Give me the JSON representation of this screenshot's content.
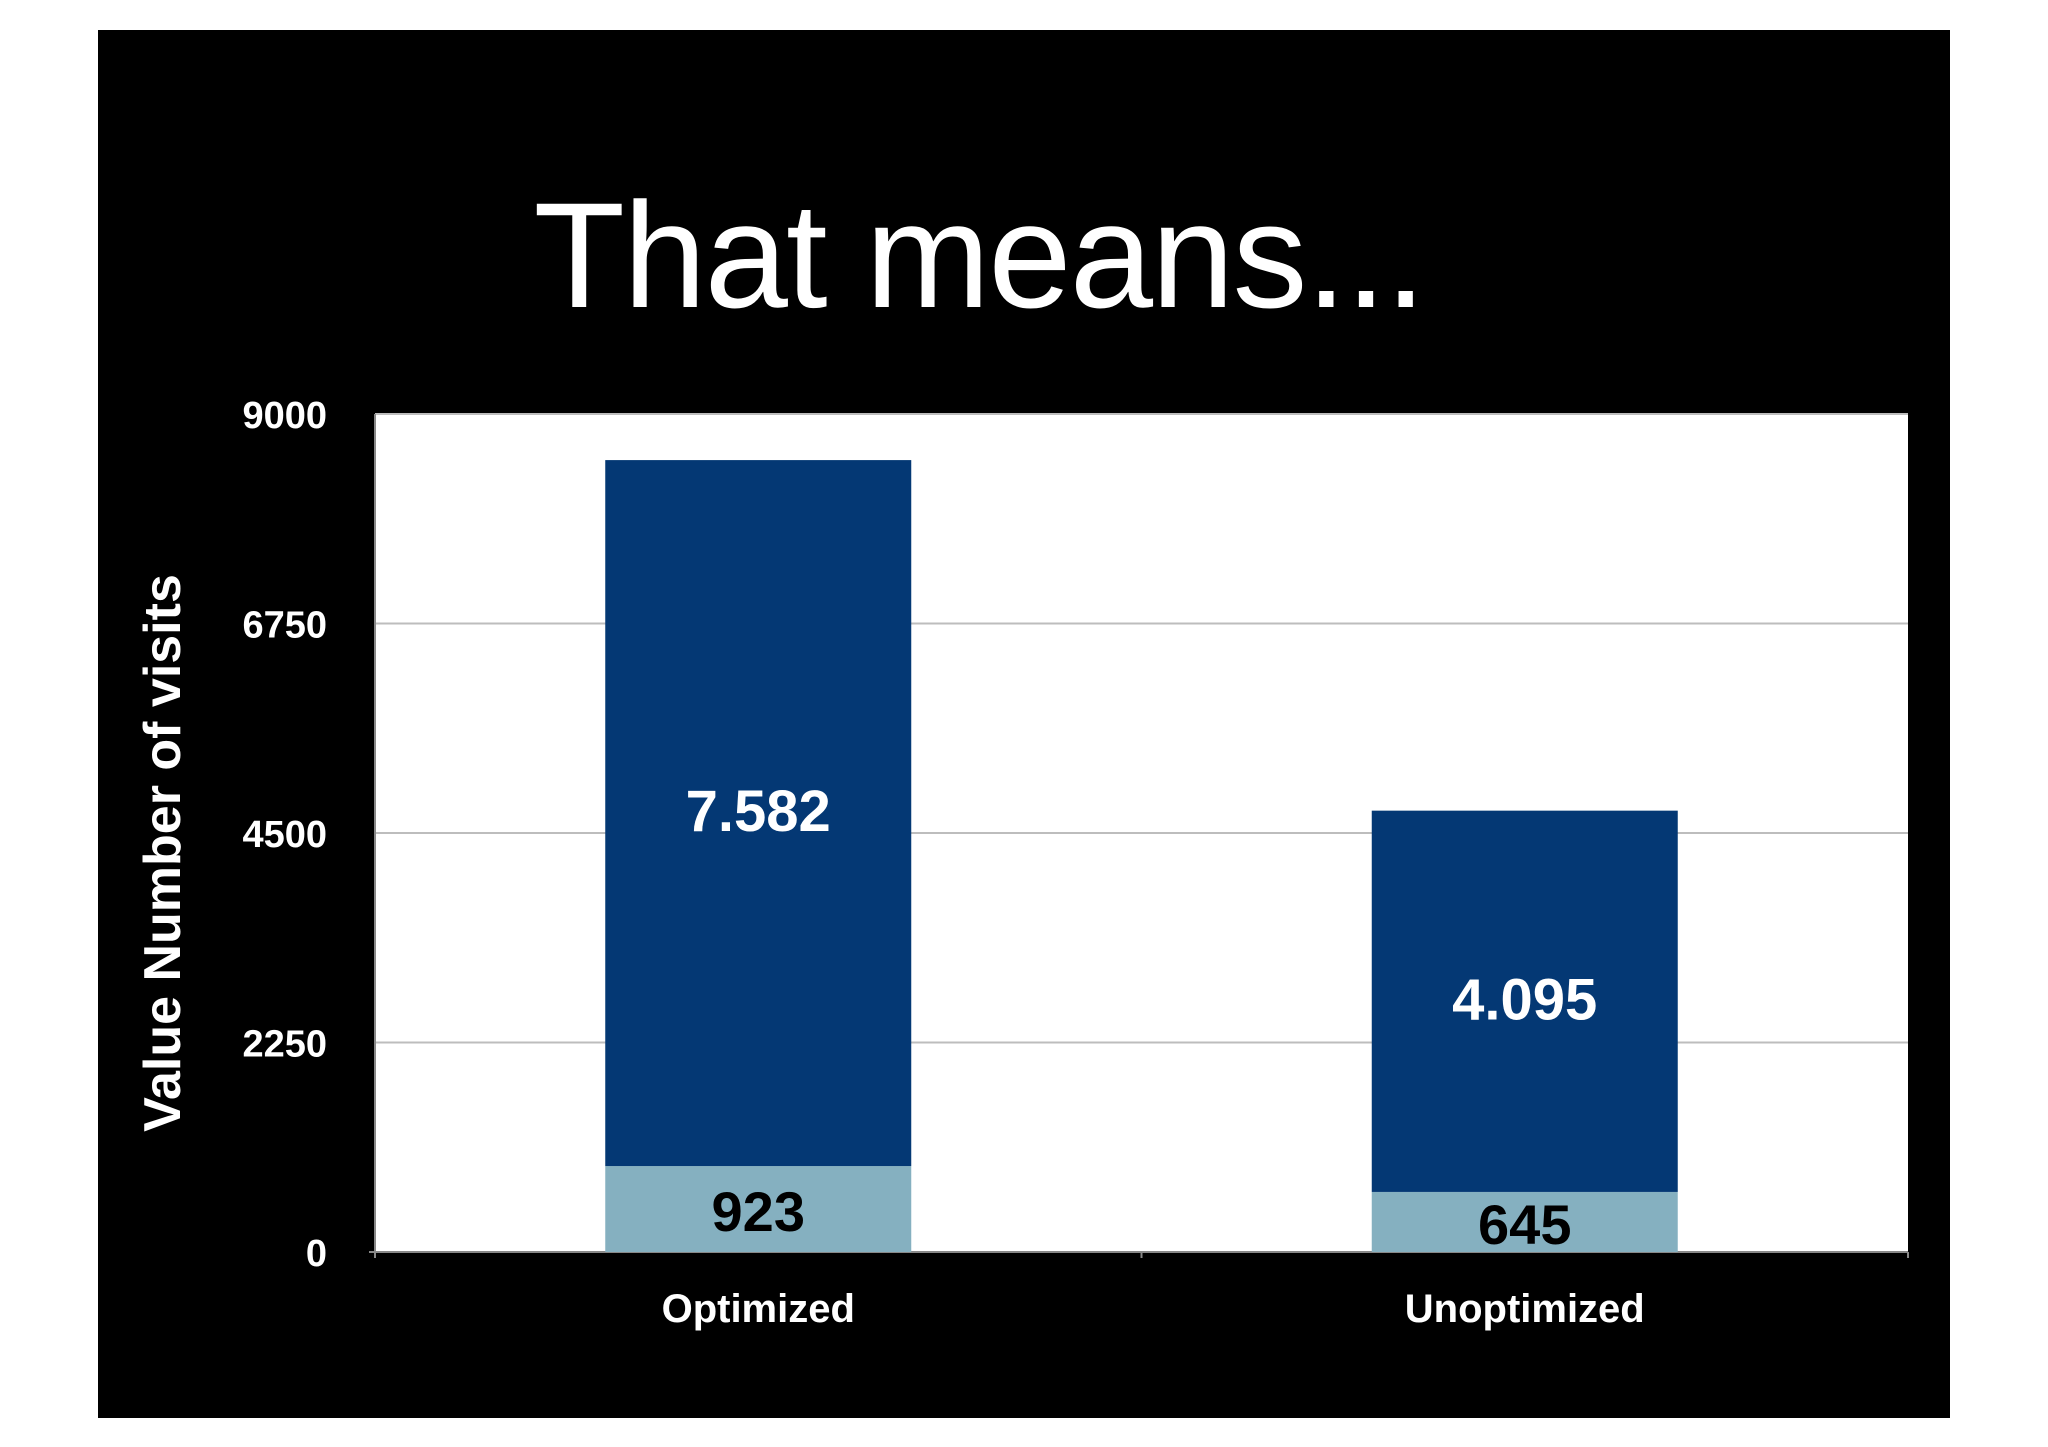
{
  "slide": {
    "title": "That means..."
  },
  "colors": {
    "background": "#000000",
    "plot_area": "#ffffff",
    "series_top": "#043874",
    "series_bottom": "#85b0c0",
    "gridline": "#bdbdbd",
    "text": "#ffffff",
    "bottom_label_text": "#000000"
  },
  "chart_data": {
    "type": "bar",
    "stacked": true,
    "title": "That means...",
    "xlabel": "",
    "ylabel": "Value Number of visits",
    "ylim": [
      0,
      9000
    ],
    "yticks": [
      0,
      2250,
      4500,
      6750,
      9000
    ],
    "ytick_labels": [
      "0",
      "2250",
      "4500",
      "6750",
      "9000"
    ],
    "categories": [
      "Optimized",
      "Unoptimized"
    ],
    "series": [
      {
        "values": [
          923,
          645
        ],
        "labels": [
          "923",
          "645"
        ],
        "color": "#85b0c0"
      },
      {
        "values": [
          7582,
          4095
        ],
        "labels": [
          "7.582",
          "4.095"
        ],
        "color": "#043874"
      }
    ],
    "grid": true,
    "legend": "none"
  }
}
